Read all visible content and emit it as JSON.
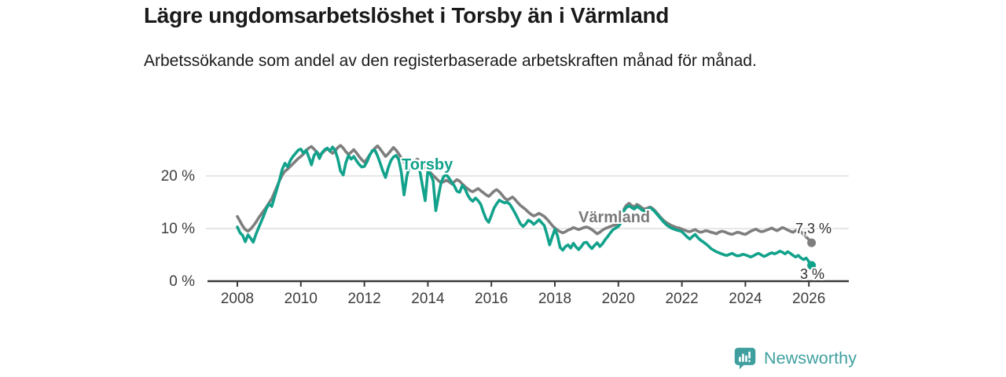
{
  "header": {
    "title": "Lägre ungdomsarbetslöshet i Torsby än i Värmland",
    "subtitle": "Arbetssökande som andel av den registerbaserade arbetskraften månad för månad."
  },
  "footer": {
    "brand": "Newsworthy"
  },
  "colors": {
    "torsby": "#12a28b",
    "varmland": "#7e7e7e",
    "grid": "#dddddd",
    "axis": "#3a3a3a",
    "tick_label": "#3d3d3d",
    "end_label": "#2e2e2e",
    "logo": "#3f9f9f"
  },
  "chart_data": {
    "type": "line",
    "title": "Lägre ungdomsarbetslöshet i Torsby än i Värmland",
    "subtitle": "Arbetssökande som andel av den registerbaserade arbetskraften månad för månad.",
    "unit": "%",
    "frequency": "monthly",
    "x_start": "2008-01",
    "x_end": "2026-02",
    "x_ticks": [
      2008,
      2010,
      2012,
      2014,
      2016,
      2018,
      2020,
      2022,
      2024,
      2026
    ],
    "y_ticks": [
      {
        "value": 0,
        "label": "0 %"
      },
      {
        "value": 10,
        "label": "10 %"
      },
      {
        "value": 20,
        "label": "20 %"
      }
    ],
    "ylim": [
      0,
      27.5
    ],
    "grid": "horizontal",
    "legend": "inline-labels",
    "series": [
      {
        "name": "Värmland",
        "label_text": "Värmland",
        "end_label": "7,3 %",
        "color": "#7e7e7e",
        "values": [
          12.3,
          11.4,
          10.5,
          9.8,
          9.5,
          9.9,
          10.5,
          11.2,
          12.0,
          12.7,
          13.4,
          14.1,
          14.9,
          15.7,
          16.8,
          18.0,
          19.2,
          20.2,
          20.9,
          21.3,
          21.8,
          22.3,
          22.8,
          23.3,
          23.7,
          24.2,
          24.8,
          25.3,
          25.6,
          25.1,
          24.5,
          24.0,
          24.3,
          24.8,
          25.2,
          24.7,
          24.3,
          24.8,
          25.4,
          25.8,
          25.3,
          24.6,
          24.1,
          24.5,
          25.0,
          24.4,
          23.7,
          23.1,
          22.6,
          23.2,
          24.0,
          24.7,
          25.3,
          25.7,
          25.1,
          24.4,
          23.7,
          24.2,
          24.8,
          25.4,
          24.9,
          24.2,
          23.4,
          22.6,
          22.0,
          22.5,
          23.0,
          22.7,
          23.2,
          22.8,
          22.2,
          21.6,
          21.1,
          20.6,
          20.1,
          19.6,
          19.1,
          18.7,
          18.9,
          19.2,
          18.9,
          18.5,
          18.9,
          19.3,
          19.0,
          18.5,
          18.0,
          17.6,
          17.2,
          17.0,
          17.3,
          17.6,
          17.2,
          16.8,
          16.4,
          16.1,
          16.6,
          17.1,
          17.4,
          17.0,
          16.4,
          15.8,
          15.4,
          15.7,
          16.0,
          15.5,
          14.9,
          14.4,
          14.0,
          13.6,
          13.1,
          12.7,
          12.4,
          12.6,
          12.9,
          12.6,
          12.3,
          11.8,
          11.2,
          10.6,
          10.1,
          9.7,
          9.4,
          9.2,
          9.4,
          9.7,
          9.9,
          10.2,
          10.0,
          9.8,
          10.0,
          10.2,
          10.3,
          10.1,
          9.8,
          9.4,
          9.0,
          9.3,
          9.7,
          10.0,
          10.2,
          10.4,
          10.6,
          10.7,
          10.8,
          11.4,
          13.6,
          14.4,
          14.8,
          14.4,
          14.1,
          14.6,
          14.3,
          13.9,
          13.7,
          13.9,
          14.1,
          13.8,
          13.3,
          12.7,
          12.1,
          11.6,
          11.2,
          10.9,
          10.6,
          10.4,
          10.2,
          10.1,
          9.9,
          9.7,
          9.5,
          9.4,
          9.6,
          9.8,
          9.5,
          9.3,
          9.4,
          9.6,
          9.5,
          9.3,
          9.2,
          9.0,
          9.3,
          9.5,
          9.4,
          9.2,
          9.0,
          8.9,
          9.1,
          9.3,
          9.2,
          9.0,
          8.9,
          9.2,
          9.5,
          9.7,
          9.9,
          9.6,
          9.4,
          9.5,
          9.7,
          9.9,
          10.1,
          9.8,
          9.6,
          9.9,
          10.2,
          10.0,
          9.7,
          9.5,
          9.3,
          9.6,
          9.8,
          9.4,
          8.9,
          8.4,
          7.9,
          7.3
        ]
      },
      {
        "name": "Torsby",
        "label_text": "Torsby",
        "end_label": "3 %",
        "color": "#12a28b",
        "values": [
          10.3,
          9.2,
          8.7,
          7.5,
          8.8,
          8.2,
          7.4,
          8.9,
          10.1,
          11.3,
          12.5,
          13.8,
          14.7,
          14.2,
          15.9,
          17.6,
          19.4,
          21.3,
          22.4,
          21.7,
          22.9,
          23.7,
          24.3,
          24.9,
          25.1,
          24.3,
          24.9,
          23.6,
          22.1,
          23.9,
          24.6,
          23.3,
          24.4,
          25.0,
          25.3,
          24.7,
          25.5,
          24.8,
          23.2,
          20.9,
          20.2,
          22.5,
          23.9,
          23.2,
          23.7,
          22.9,
          22.2,
          21.7,
          21.8,
          22.7,
          23.9,
          24.8,
          24.9,
          23.8,
          22.4,
          20.9,
          19.7,
          21.5,
          22.9,
          23.6,
          23.9,
          23.1,
          20.6,
          16.4,
          19.8,
          21.9,
          22.3,
          21.5,
          22.4,
          20.9,
          18.0,
          15.3,
          21.0,
          20.3,
          19.1,
          13.4,
          16.2,
          18.7,
          19.9,
          20.2,
          19.6,
          18.8,
          18.1,
          17.1,
          16.9,
          18.2,
          17.6,
          16.4,
          15.6,
          15.2,
          15.8,
          15.3,
          14.6,
          13.1,
          11.8,
          11.2,
          12.5,
          13.9,
          14.7,
          15.4,
          15.1,
          14.9,
          15.0,
          14.6,
          13.8,
          12.9,
          11.9,
          10.9,
          10.4,
          10.9,
          11.6,
          11.3,
          10.8,
          11.2,
          11.7,
          11.1,
          10.6,
          8.9,
          6.9,
          8.4,
          9.9,
          8.6,
          6.4,
          5.9,
          6.6,
          6.9,
          6.3,
          7.2,
          6.5,
          6.0,
          6.6,
          7.3,
          7.4,
          6.7,
          6.2,
          6.8,
          7.3,
          6.6,
          7.1,
          7.9,
          8.5,
          9.2,
          9.8,
          10.1,
          10.4,
          11.1,
          13.3,
          14.0,
          14.3,
          14.0,
          13.7,
          14.2,
          13.9,
          13.5,
          13.3,
          13.6,
          13.9,
          13.6,
          13.1,
          12.5,
          11.9,
          11.3,
          10.8,
          10.4,
          10.1,
          9.9,
          9.7,
          9.6,
          9.4,
          8.9,
          8.4,
          8.0,
          8.5,
          8.9,
          8.3,
          7.8,
          7.5,
          7.1,
          6.7,
          6.2,
          5.9,
          5.6,
          5.4,
          5.2,
          5.0,
          4.9,
          5.1,
          5.3,
          5.0,
          4.8,
          4.9,
          5.1,
          5.0,
          4.8,
          4.6,
          4.8,
          5.1,
          5.3,
          5.0,
          4.7,
          4.9,
          5.2,
          5.4,
          5.2,
          5.4,
          5.7,
          5.5,
          5.2,
          5.6,
          5.3,
          4.9,
          4.6,
          4.9,
          4.4,
          4.1,
          4.4,
          3.7,
          3.0
        ]
      }
    ]
  }
}
